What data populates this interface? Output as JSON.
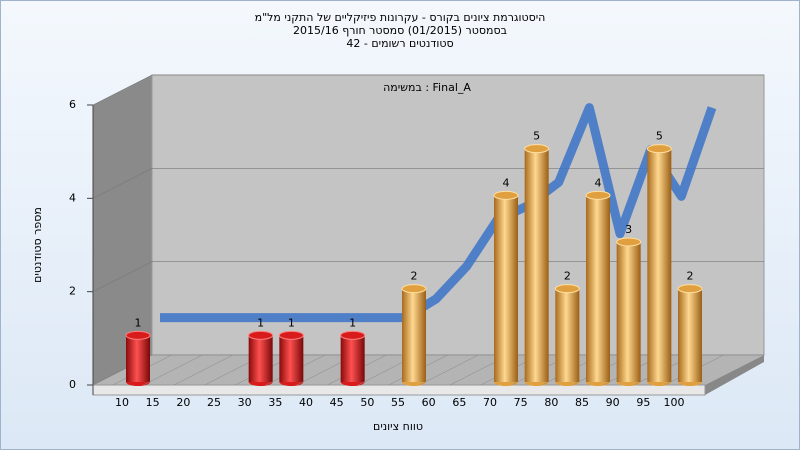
{
  "chart_data": {
    "type": "bar3d",
    "title": [
      "היסטוגרמת ציונים בקורס - עקרונות פיזיקליים של התקני מל\"מ",
      "בסמסטר  (01/2015)  סמסטר חורף 2015/16",
      "סטודנטים רשומים - 42"
    ],
    "annotation": "במשימה : Final_A",
    "x_label": "טווח ציונים",
    "y_label": "מספר סטודנטים",
    "categories": [
      "10",
      "15",
      "20",
      "25",
      "30",
      "35",
      "40",
      "45",
      "50",
      "55",
      "60",
      "65",
      "70",
      "75",
      "80",
      "85",
      "90",
      "95",
      "100"
    ],
    "values": [
      1,
      0,
      0,
      0,
      1,
      1,
      0,
      1,
      0,
      2,
      0,
      0,
      4,
      5,
      2,
      4,
      3,
      5,
      2
    ],
    "colors": [
      "#d81c1c",
      "#d81c1c",
      "#d81c1c",
      "#d81c1c",
      "#d81c1c",
      "#d81c1c",
      "#d81c1c",
      "#d81c1c",
      "#d81c1c",
      "#e0a040",
      "#e0a040",
      "#e0a040",
      "#e0a040",
      "#e0a040",
      "#e0a040",
      "#e0a040",
      "#e0a040",
      "#e0a040",
      "#e0a040"
    ],
    "trend": [
      0.8,
      0.8,
      0.8,
      0.8,
      0.8,
      0.8,
      0.8,
      0.8,
      0.8,
      1.2,
      1.9,
      2.9,
      3.2,
      3.7,
      5.3,
      2.6,
      4.4,
      3.4,
      5.3
    ],
    "trend_color": "#3b73c8",
    "ylim": [
      0,
      6
    ],
    "yticks": [
      0,
      2,
      4,
      6
    ],
    "grid": true
  }
}
